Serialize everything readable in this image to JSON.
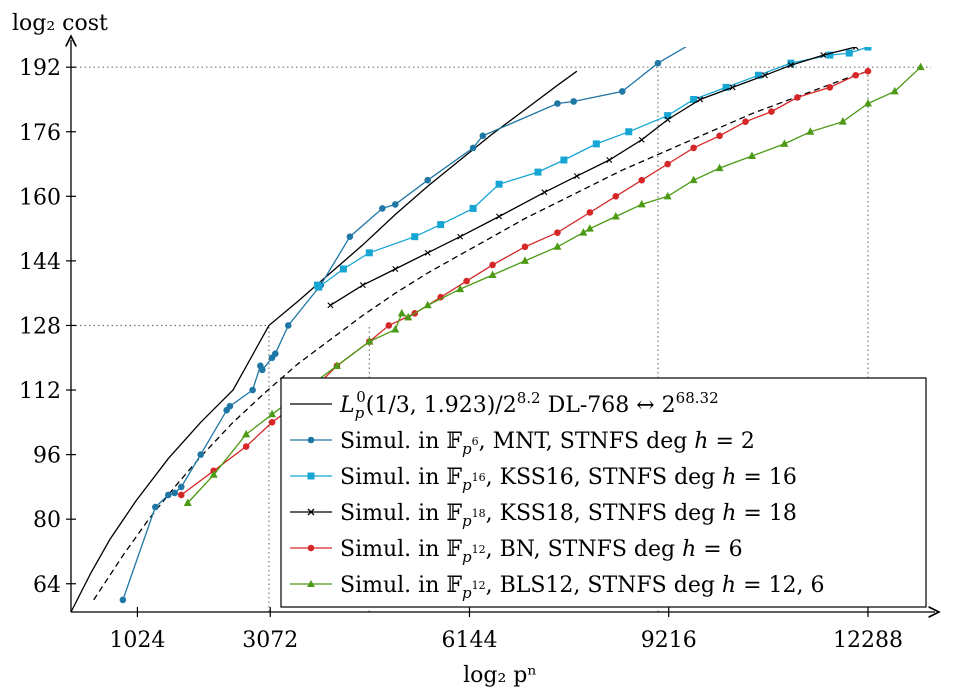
{
  "chart_data": {
    "type": "line",
    "xlabel": "log₂ pⁿ",
    "ylabel": "log₂ cost",
    "xlim": [
      0,
      13260
    ],
    "ylim": [
      57,
      197
    ],
    "xticks": [
      1024,
      3072,
      6144,
      9216,
      12288
    ],
    "xtick_labels": [
      "1024",
      "3072",
      "6144",
      "9216",
      "12288"
    ],
    "yticks": [
      64,
      80,
      96,
      112,
      128,
      144,
      160,
      176,
      192
    ],
    "ytick_labels": [
      "64",
      "80",
      "96",
      "112",
      "128",
      "144",
      "160",
      "176",
      "192"
    ],
    "grid": false,
    "legend": "bottom-right",
    "reference_lines": [
      {
        "x": [
          0,
          3052
        ],
        "y": [
          128,
          128
        ],
        "style": "dotted"
      },
      {
        "x": [
          3052,
          3052
        ],
        "y": [
          57,
          128
        ],
        "style": "dotted"
      },
      {
        "x": [
          4600,
          4600
        ],
        "y": [
          57,
          128
        ],
        "style": "dotted"
      },
      {
        "x": [
          0,
          13260
        ],
        "y": [
          192,
          192
        ],
        "style": "dotted"
      },
      {
        "x": [
          9050,
          9050
        ],
        "y": [
          57,
          192
        ],
        "style": "dotted"
      },
      {
        "x": [
          12288,
          12288
        ],
        "y": [
          57,
          192
        ],
        "style": "dotted"
      }
    ],
    "series": [
      {
        "name": "L_p^0(1/3, 1.923)/2^8.2 DL-768 ↔ 2^68.32",
        "legend_main": "L",
        "legend_sub": "p",
        "legend_sup": "0",
        "legend_args": "(1/3, 1.923)/2",
        "legend_exp1": "8.2",
        "legend_tail": " DL-768 ↔ 2",
        "legend_exp2": "68.32",
        "color": "#000000",
        "marker": "none",
        "dash": "solid",
        "x": [
          0,
          300,
          600,
          1000,
          1500,
          2000,
          2500,
          3052,
          3500,
          4000,
          4500,
          5000,
          5500,
          6000,
          6500,
          7000,
          7500,
          7800
        ],
        "y": [
          57,
          66.5,
          75,
          84.5,
          95,
          104,
          112,
          128,
          134,
          141,
          148,
          155.5,
          162.5,
          169,
          175.5,
          181.5,
          187.5,
          191
        ]
      },
      {
        "name": "",
        "color": "#000000",
        "marker": "none",
        "dash": "dashed",
        "x": [
          350,
          800,
          1200,
          1600,
          2000,
          2500,
          3000,
          3500,
          4000,
          4500,
          5000,
          5500,
          6000,
          6500,
          7000,
          7500,
          8000,
          8500,
          9000,
          9500,
          10000,
          10500,
          11000,
          11500,
          12000,
          12288
        ],
        "y": [
          60,
          71,
          80,
          88,
          95.5,
          104,
          111.5,
          118.5,
          124.5,
          130.5,
          136,
          141,
          145.5,
          150,
          154.5,
          158.5,
          162.5,
          166.5,
          170,
          173.5,
          177,
          180.5,
          183.5,
          186.5,
          189.5,
          191
        ]
      },
      {
        "name": "Simul. in F_{p^6}, MNT, STNFS deg h = 2",
        "legend_prefix": "Simul. in ",
        "legend_field_sup": "6",
        "legend_suffix": ", MNT, STNFS deg ",
        "legend_var": "h",
        "legend_eq": " = 2",
        "color": "#1f77a5",
        "marker": "circle",
        "dash": "solid",
        "x": [
          800,
          1300,
          1500,
          1600,
          1700,
          2000,
          2400,
          2450,
          2800,
          2920,
          2950,
          3100,
          3150,
          3350,
          3850,
          4300,
          4800,
          5000,
          5500,
          6200,
          6350,
          7500,
          7750,
          8500,
          9050,
          9900
        ],
        "y": [
          60,
          83,
          86,
          86.5,
          88,
          96,
          107,
          108,
          112,
          118,
          117,
          120,
          121,
          128,
          138,
          150,
          157,
          158,
          164,
          172,
          175,
          183,
          183.5,
          186,
          193,
          201
        ]
      },
      {
        "name": "Simul. in F_{p^16}, KSS16, STNFS deg h = 16",
        "legend_prefix": "Simul. in ",
        "legend_field_sup": "16",
        "legend_suffix": ", KSS16, STNFS deg ",
        "legend_var": "h",
        "legend_eq": " = 16",
        "color": "#17a6d4",
        "marker": "square",
        "dash": "solid",
        "x": [
          3800,
          3820,
          4200,
          4600,
          5300,
          5700,
          6200,
          6600,
          7200,
          7600,
          8100,
          8600,
          9200,
          9600,
          10100,
          10600,
          11100,
          11700,
          12000,
          12288
        ],
        "y": [
          138,
          137.5,
          142,
          146,
          150,
          153,
          157,
          163,
          166,
          169,
          173,
          176,
          180,
          184,
          187,
          190,
          193,
          195,
          195.5,
          197
        ]
      },
      {
        "name": "Simul. in F_{p^18}, KSS18, STNFS deg h = 18",
        "legend_prefix": "Simul. in ",
        "legend_field_sup": "18",
        "legend_suffix": ", KSS18, STNFS deg ",
        "legend_var": "h",
        "legend_eq": " = 18",
        "color": "#000000",
        "marker": "cross",
        "dash": "solid",
        "x": [
          4000,
          4500,
          5000,
          5500,
          6000,
          6600,
          7300,
          7800,
          8300,
          8800,
          9200,
          9700,
          10200,
          10700,
          11100,
          11600,
          12100
        ],
        "y": [
          133,
          138,
          142,
          146,
          150,
          155,
          161,
          165,
          169,
          174,
          179,
          184,
          187,
          190,
          192.5,
          195,
          197
        ]
      },
      {
        "name": "Simul. in F_{p^12}, BN, STNFS deg h = 6",
        "legend_prefix": "Simul. in ",
        "legend_field_sup": "12",
        "legend_suffix": ", BN, STNFS deg ",
        "legend_var": "h",
        "legend_eq": " = 6",
        "color": "#d62728",
        "marker": "circle",
        "dash": "solid",
        "x": [
          1700,
          2200,
          2700,
          3100,
          3600,
          4100,
          4600,
          4900,
          5300,
          5700,
          6100,
          6500,
          7000,
          7500,
          8000,
          8400,
          8800,
          9200,
          9600,
          10000,
          10400,
          10800,
          11200,
          11700,
          12100,
          12288
        ],
        "y": [
          86,
          92,
          98,
          104,
          110,
          118,
          124,
          128,
          131,
          135,
          139,
          143,
          147.5,
          151,
          156,
          160,
          164,
          168,
          172,
          175,
          178.5,
          181,
          184.5,
          187,
          190,
          191
        ]
      },
      {
        "name": "Simul. in F_{p^12}, BLS12, STNFS deg h = 12, 6",
        "legend_prefix": "Simul. in ",
        "legend_field_sup": "12",
        "legend_suffix": ", BLS12, STNFS deg ",
        "legend_var": "h",
        "legend_eq": " = 12, 6",
        "color": "#4c9a16",
        "marker": "triangle",
        "dash": "solid",
        "x": [
          1800,
          2200,
          2700,
          3100,
          3600,
          4100,
          4600,
          5000,
          5100,
          5200,
          5500,
          6000,
          6500,
          7000,
          7500,
          7900,
          8000,
          8400,
          8800,
          9200,
          9600,
          10000,
          10500,
          11000,
          11400,
          11900,
          12288,
          12700,
          13100
        ],
        "y": [
          84,
          91,
          101,
          106,
          112,
          118,
          124,
          127,
          131,
          130,
          133,
          137,
          140.5,
          144,
          147.5,
          151,
          152,
          155,
          158,
          160,
          164,
          167,
          170,
          173,
          176,
          178.5,
          183,
          186,
          192
        ]
      }
    ]
  }
}
